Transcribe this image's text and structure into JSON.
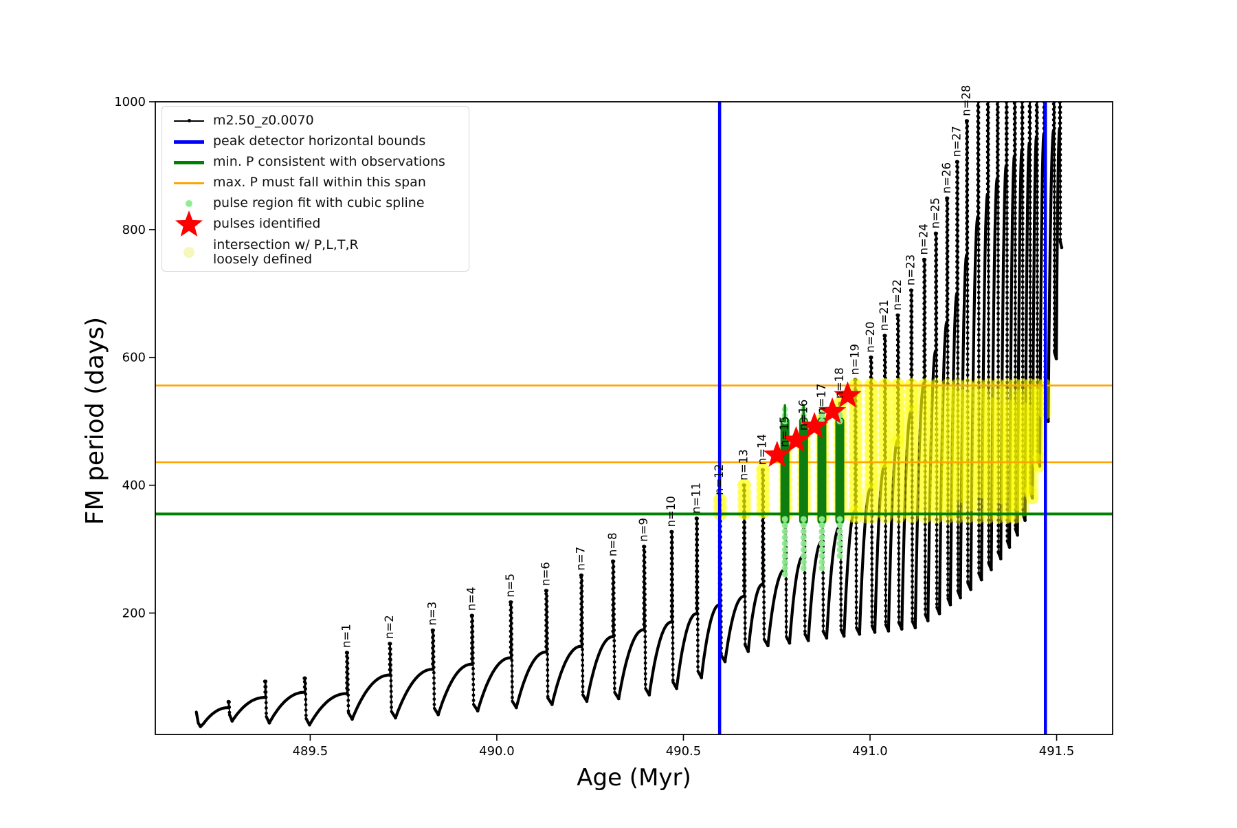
{
  "chart_data": {
    "type": "line",
    "title": "",
    "xlabel": "Age (Myr)",
    "ylabel": "FM period (days)",
    "xlim": [
      489.085,
      491.65
    ],
    "ylim": [
      10,
      1000
    ],
    "xticks": [
      489.5,
      490.0,
      490.5,
      491.0,
      491.5
    ],
    "xtick_labels": [
      "489.5",
      "490.0",
      "490.5",
      "491.0",
      "491.5"
    ],
    "yticks": [
      200,
      400,
      600,
      800,
      1000
    ],
    "ytick_labels": [
      "200",
      "400",
      "600",
      "800",
      "1000"
    ],
    "grid": false,
    "series_label": "m2.50_z0.0070",
    "colors": {
      "series": "#000000",
      "peak_bounds": "#0000ff",
      "min_p_line": "#008000",
      "max_p_line": "#ffa500",
      "spline_dots": "#90ee90",
      "spline_bars": "#0e7c0e",
      "pulse_star": "#ff0000",
      "intersection": "#ffff00",
      "legend_yellow_swatch": "#f7f7bb"
    },
    "vlines": {
      "label": "peak detector horizontal bounds",
      "x": [
        490.597,
        491.47
      ]
    },
    "hline_min_p": {
      "label": "min. P consistent with observations",
      "y": 355
    },
    "hlines_max_p": {
      "label": "max. P must fall within this span",
      "y": [
        436,
        556
      ]
    },
    "start_points": [
      [
        489.195,
        45
      ],
      [
        489.2,
        28
      ],
      [
        489.206,
        22
      ],
      [
        489.214,
        27
      ]
    ],
    "pre_pulses": [
      {
        "t": 489.281,
        "peak": 61,
        "min": 31,
        "sh": 52
      },
      {
        "t": 489.379,
        "peak": 93,
        "min": 28,
        "sh": 68
      },
      {
        "t": 489.485,
        "peak": 98,
        "min": 25,
        "sh": 76
      }
    ],
    "pulses": [
      {
        "n": 1,
        "t": 489.598,
        "peak": 138,
        "min": 34,
        "sh": 74
      },
      {
        "n": 2,
        "t": 489.713,
        "peak": 152,
        "min": 36,
        "sh": 103
      },
      {
        "n": 3,
        "t": 489.828,
        "peak": 173,
        "min": 41,
        "sh": 112
      },
      {
        "n": 4,
        "t": 489.933,
        "peak": 196,
        "min": 47,
        "sh": 120
      },
      {
        "n": 5,
        "t": 490.037,
        "peak": 217,
        "min": 52,
        "sh": 130
      },
      {
        "n": 6,
        "t": 490.132,
        "peak": 235,
        "min": 57,
        "sh": 139
      },
      {
        "n": 7,
        "t": 490.226,
        "peak": 259,
        "min": 62,
        "sh": 148
      },
      {
        "n": 8,
        "t": 490.311,
        "peak": 281,
        "min": 66,
        "sh": 163
      },
      {
        "n": 9,
        "t": 490.394,
        "peak": 304,
        "min": 72,
        "sh": 174
      },
      {
        "n": 10,
        "t": 490.468,
        "peak": 327,
        "min": 82,
        "sh": 186
      },
      {
        "n": 11,
        "t": 490.535,
        "peak": 348,
        "min": 99,
        "sh": 199
      },
      {
        "n": 12,
        "t": 490.597,
        "peak": 377,
        "min": 124,
        "sh": 213
      },
      {
        "n": 13,
        "t": 490.662,
        "peak": 400,
        "min": 140,
        "sh": 226
      },
      {
        "n": 14,
        "t": 490.712,
        "peak": 424,
        "min": 149,
        "sh": 245
      },
      {
        "n": 15,
        "t": 490.772,
        "peak": 452,
        "min": 153,
        "sh": 268
      },
      {
        "n": 16,
        "t": 490.822,
        "peak": 478,
        "min": 157,
        "sh": 290
      },
      {
        "n": 17,
        "t": 490.871,
        "peak": 503,
        "min": 161,
        "sh": 312
      },
      {
        "n": 18,
        "t": 490.919,
        "peak": 528,
        "min": 164,
        "sh": 335
      },
      {
        "n": 19,
        "t": 490.96,
        "peak": 565,
        "min": 167,
        "sh": 360
      },
      {
        "n": 20,
        "t": 491.002,
        "peak": 600,
        "min": 170,
        "sh": 395
      },
      {
        "n": 21,
        "t": 491.039,
        "peak": 634,
        "min": 172,
        "sh": 430
      },
      {
        "n": 22,
        "t": 491.074,
        "peak": 666,
        "min": 175,
        "sh": 470
      },
      {
        "n": 23,
        "t": 491.11,
        "peak": 705,
        "min": 177,
        "sh": 515
      },
      {
        "n": 24,
        "t": 491.145,
        "peak": 753,
        "min": 188,
        "sh": 560
      },
      {
        "n": 25,
        "t": 491.176,
        "peak": 794,
        "min": 199,
        "sh": 610
      },
      {
        "n": 26,
        "t": 491.206,
        "peak": 849,
        "min": 213,
        "sh": 655
      },
      {
        "n": 27,
        "t": 491.233,
        "peak": 906,
        "min": 224,
        "sh": 700
      },
      {
        "n": 28,
        "t": 491.259,
        "peak": 970,
        "min": 237,
        "sh": 760
      }
    ],
    "clipped_pulses": [
      {
        "t": 491.289,
        "peak": 1005,
        "min": 252,
        "sh": 820
      },
      {
        "t": 491.315,
        "peak": 1005,
        "min": 268,
        "sh": 855
      },
      {
        "t": 491.341,
        "peak": 1005,
        "min": 285,
        "sh": 880
      },
      {
        "t": 491.365,
        "peak": 1005,
        "min": 303,
        "sh": 900
      },
      {
        "t": 491.387,
        "peak": 1005,
        "min": 322,
        "sh": 915
      },
      {
        "t": 491.407,
        "peak": 1005,
        "min": 345,
        "sh": 925
      },
      {
        "t": 491.427,
        "peak": 1005,
        "min": 380,
        "sh": 935
      },
      {
        "t": 491.446,
        "peak": 1005,
        "min": 430,
        "sh": 945
      },
      {
        "t": 491.466,
        "peak": 1005,
        "min": 500,
        "sh": 950
      },
      {
        "t": 491.492,
        "peak": 1005,
        "min": 598,
        "sh": 955
      },
      {
        "t": 491.508,
        "peak": 1005,
        "min": 772,
        "sh": 958,
        "final": true
      }
    ],
    "stars": {
      "label": "pulses identified",
      "points": [
        [
          490.751,
          447
        ],
        [
          490.802,
          470
        ],
        [
          490.851,
          492
        ],
        [
          490.899,
          515
        ],
        [
          490.94,
          540
        ]
      ]
    },
    "spline_bars": {
      "label": "pulse region fit with cubic spline",
      "t": [
        490.772,
        490.822,
        490.871,
        490.919
      ],
      "v_bottom": 345,
      "v_top": 500,
      "tip_top": 527,
      "thin_tip_top": 525
    },
    "spline_tails": [
      {
        "t": 490.772,
        "v_from": 347,
        "v_to": 258
      },
      {
        "t": 490.822,
        "v_from": 347,
        "v_to": 262
      },
      {
        "t": 490.871,
        "v_from": 347,
        "v_to": 268
      },
      {
        "t": 490.919,
        "v_from": 347,
        "v_to": 283
      }
    ],
    "yellow_region": {
      "label": "intersection w/ P,L,T,R loosely defined",
      "t_range": [
        490.595,
        491.47
      ],
      "v_range": [
        350,
        557
      ]
    },
    "legend": {
      "entries": [
        {
          "label": "m2.50_z0.0070",
          "type": "line-dot-black"
        },
        {
          "label": "peak detector horizontal bounds",
          "type": "thick-blue"
        },
        {
          "label": "min. P consistent with observations",
          "type": "thick-green"
        },
        {
          "label": "max. P must fall within this span",
          "type": "line-orange"
        },
        {
          "label": "pulse region fit with cubic spline",
          "type": "dot-lightgreen"
        },
        {
          "label": "pulses identified",
          "type": "star-red"
        },
        {
          "label": "intersection w/ P,L,T,R\nloosely defined",
          "type": "dot-paleyellow"
        }
      ]
    }
  }
}
